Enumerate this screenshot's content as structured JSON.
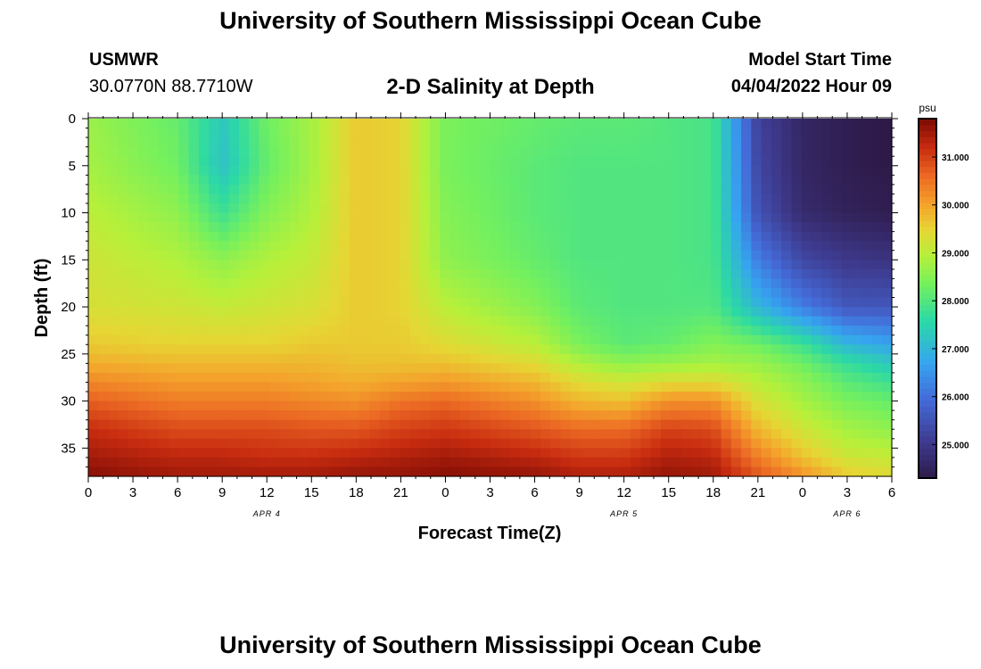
{
  "header": {
    "title_top": "University of Southern Mississippi Ocean Cube",
    "station": "USMWR",
    "coords": "30.0770N  88.7710W",
    "subtitle": "2-D Salinity at Depth",
    "start_label": "Model Start Time",
    "start_value": "04/04/2022 Hour 09",
    "title_bottom": "University of Southern Mississippi Ocean Cube"
  },
  "chart_data": {
    "type": "heatmap",
    "title": "2-D Salinity at Depth",
    "xlabel": "Forecast Time(Z)",
    "ylabel": "Depth (ft)",
    "x_unit": "hours since 04/04 00Z",
    "xlim": [
      0,
      54
    ],
    "ylim": [
      38,
      0
    ],
    "x_ticks": [
      0,
      3,
      6,
      9,
      12,
      15,
      18,
      21,
      24,
      27,
      30,
      33,
      36,
      39,
      42,
      45,
      48,
      51,
      54
    ],
    "x_tick_labels": [
      "0",
      "3",
      "6",
      "9",
      "12",
      "15",
      "18",
      "21",
      "0",
      "3",
      "6",
      "9",
      "12",
      "15",
      "18",
      "21",
      "0",
      "3",
      "6"
    ],
    "y_ticks": [
      0,
      5,
      10,
      15,
      20,
      25,
      30,
      35
    ],
    "y_tick_labels": [
      "0",
      "5",
      "10",
      "15",
      "20",
      "25",
      "30",
      "35"
    ],
    "date_labels": [
      {
        "hour": 12,
        "label": "APR 4"
      },
      {
        "hour": 36,
        "label": "APR 5"
      },
      {
        "hour": 51,
        "label": "APR 6"
      }
    ],
    "colorbar": {
      "unit": "psu",
      "min": 24.3,
      "max": 31.8,
      "ticks": [
        25,
        26,
        27,
        28,
        29,
        30,
        31
      ],
      "tick_labels": [
        "25.000",
        "26.000",
        "27.000",
        "28.000",
        "29.000",
        "30.000",
        "31.000"
      ]
    },
    "time_hours": [
      0,
      6,
      9,
      12,
      15,
      18,
      21,
      24,
      30,
      33,
      36,
      39,
      42,
      45,
      48,
      51,
      54
    ],
    "depths_ft": [
      0,
      5,
      10,
      15,
      20,
      24,
      26,
      28,
      30,
      33,
      36,
      38
    ],
    "salinity_psu": [
      [
        28.7,
        28.2,
        27.3,
        28.3,
        28.8,
        29.6,
        29.5,
        28.4,
        28.2,
        28.1,
        28.1,
        28.0,
        27.9,
        25.2,
        24.6,
        24.4,
        24.3
      ],
      [
        28.8,
        28.3,
        27.2,
        28.2,
        28.8,
        29.6,
        29.5,
        28.4,
        28.1,
        28.0,
        28.0,
        28.0,
        27.9,
        25.3,
        24.6,
        24.4,
        24.3
      ],
      [
        29.0,
        28.6,
        27.8,
        28.5,
        28.9,
        29.6,
        29.5,
        28.5,
        28.1,
        28.0,
        28.0,
        28.0,
        27.9,
        25.5,
        24.7,
        24.5,
        24.4
      ],
      [
        29.2,
        28.9,
        28.6,
        28.9,
        29.1,
        29.6,
        29.5,
        28.6,
        28.2,
        28.0,
        28.0,
        28.0,
        27.9,
        26.2,
        25.3,
        25.0,
        24.9
      ],
      [
        29.3,
        29.2,
        29.1,
        29.2,
        29.3,
        29.6,
        29.5,
        29.0,
        28.5,
        28.1,
        28.0,
        28.0,
        28.0,
        27.0,
        26.2,
        25.6,
        25.6
      ],
      [
        29.6,
        29.5,
        29.5,
        29.5,
        29.6,
        29.6,
        29.6,
        29.4,
        29.0,
        28.4,
        28.1,
        28.2,
        28.5,
        28.3,
        27.8,
        27.0,
        26.7
      ],
      [
        29.9,
        29.8,
        29.8,
        29.8,
        29.8,
        29.7,
        29.7,
        29.7,
        29.4,
        28.9,
        28.6,
        28.7,
        28.8,
        28.7,
        28.3,
        27.7,
        27.3
      ],
      [
        30.3,
        30.1,
        30.1,
        30.1,
        30.0,
        29.9,
        30.0,
        30.1,
        29.8,
        29.4,
        29.2,
        29.4,
        29.4,
        29.0,
        28.6,
        28.1,
        27.8
      ],
      [
        30.7,
        30.4,
        30.4,
        30.4,
        30.3,
        30.2,
        30.5,
        30.6,
        30.2,
        29.8,
        29.7,
        30.2,
        30.2,
        29.3,
        28.8,
        28.4,
        28.2
      ],
      [
        31.2,
        30.9,
        30.9,
        30.9,
        30.8,
        30.8,
        31.0,
        31.1,
        30.8,
        30.6,
        30.6,
        31.0,
        30.9,
        29.8,
        29.2,
        28.8,
        28.6
      ],
      [
        31.5,
        31.3,
        31.3,
        31.2,
        31.2,
        31.3,
        31.4,
        31.5,
        31.3,
        31.1,
        31.1,
        31.4,
        31.3,
        30.4,
        29.7,
        29.2,
        29.1
      ],
      [
        31.7,
        31.5,
        31.5,
        31.5,
        31.5,
        31.6,
        31.6,
        31.7,
        31.6,
        31.4,
        31.4,
        31.6,
        31.5,
        30.8,
        30.2,
        29.6,
        29.4
      ]
    ]
  }
}
